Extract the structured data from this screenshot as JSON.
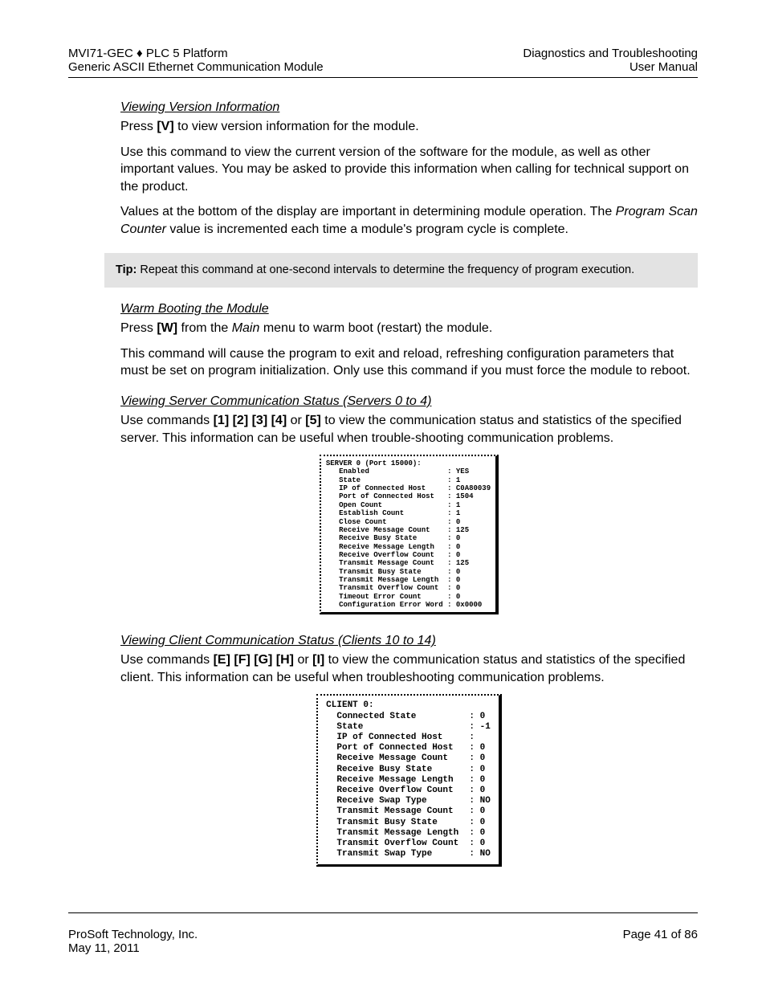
{
  "header": {
    "left_line1_a": "MVI71-GEC ",
    "left_line1_b": "♦",
    "left_line1_c": " PLC 5 Platform",
    "left_line2": "Generic ASCII Ethernet Communication Module",
    "right_line1": "Diagnostics and Troubleshooting",
    "right_line2": "User Manual"
  },
  "s1": {
    "heading": "Viewing Version Information",
    "p1a": "Press ",
    "p1b": "[V]",
    "p1c": " to view version information for the module.",
    "p2": "Use this command to view the current version of the software for the module, as well as other important values. You may be asked to provide this information when calling for technical support on the product.",
    "p3a": "Values at the bottom of the display are important in determining module operation. The ",
    "p3b": "Program Scan Counter",
    "p3c": " value is incremented each time a module's program cycle is complete."
  },
  "tip": {
    "label": "Tip:",
    "text": " Repeat this command at one-second intervals to determine the frequency of program execution."
  },
  "s2": {
    "heading": "Warm Booting the Module",
    "p1a": "Press ",
    "p1b": "[W]",
    "p1c": " from the ",
    "p1d": "Main",
    "p1e": " menu to warm boot (restart) the module.",
    "p2": "This command will cause the program to exit and reload, refreshing configuration parameters that must be set on program initialization. Only use this command if you must force the module to reboot."
  },
  "s3": {
    "heading": "Viewing Server Communication Status (Servers 0 to 4)",
    "p1a": "Use commands ",
    "p1b": "[1] [2] [3] [4]",
    "p1c": " or ",
    "p1d": "[5]",
    "p1e": " to view the communication status and statistics of the specified server. This information can be useful when trouble-shooting communication problems.",
    "terminal": "SERVER 0 (Port 15000):\n   Enabled                  : YES\n   State                    : 1\n   IP of Connected Host     : C0A80039\n   Port of Connected Host   : 1504\n   Open Count               : 1\n   Establish Count          : 1\n   Close Count              : 0\n   Receive Message Count    : 125\n   Receive Busy State       : 0\n   Receive Message Length   : 0\n   Receive Overflow Count   : 0\n   Transmit Message Count   : 125\n   Transmit Busy State      : 0\n   Transmit Message Length  : 0\n   Transmit Overflow Count  : 0\n   Timeout Error Count      : 0\n   Configuration Error Word : 0x0000"
  },
  "s4": {
    "heading": "Viewing Client Communication Status (Clients 10 to 14)",
    "p1a": "Use commands ",
    "p1b": "[E] [F] [G] [H]",
    "p1c": " or ",
    "p1d": "[I]",
    "p1e": " to view the communication status and statistics of the specified client. This information can be useful when troubleshooting communication problems.",
    "terminal": "CLIENT 0:\n  Connected State          : 0\n  State                    : -1\n  IP of Connected Host     :\n  Port of Connected Host   : 0\n  Receive Message Count    : 0\n  Receive Busy State       : 0\n  Receive Message Length   : 0\n  Receive Overflow Count   : 0\n  Receive Swap Type        : NO\n  Transmit Message Count   : 0\n  Transmit Busy State      : 0\n  Transmit Message Length  : 0\n  Transmit Overflow Count  : 0\n  Transmit Swap Type       : NO"
  },
  "footer": {
    "left_line1": "ProSoft Technology, Inc.",
    "left_line2": "May 11, 2011",
    "right": "Page 41 of 86"
  }
}
